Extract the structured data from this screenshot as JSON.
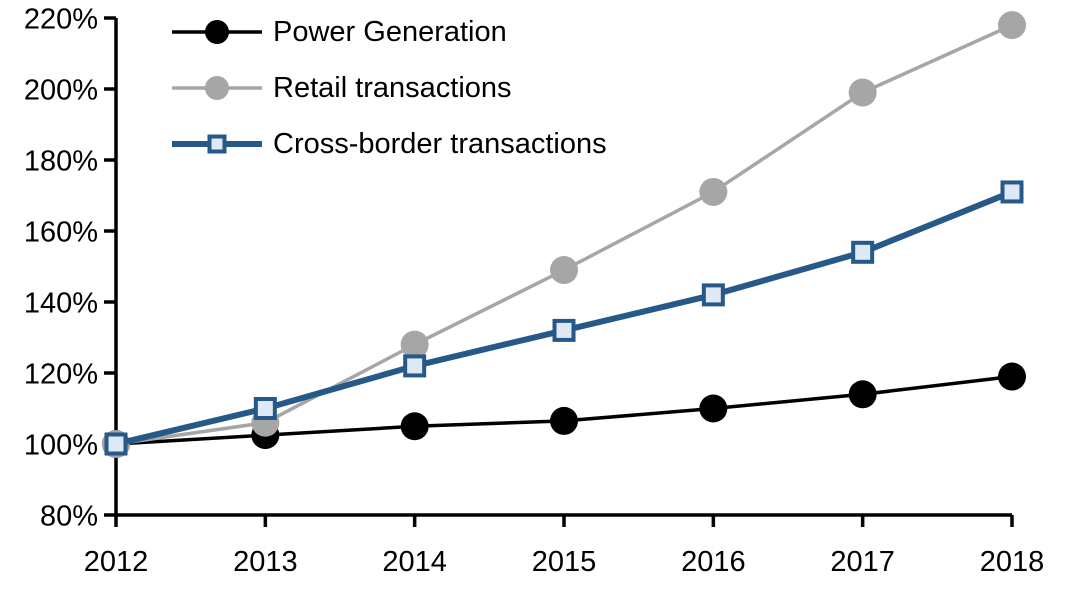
{
  "chart_data": {
    "type": "line",
    "title": "",
    "xlabel": "",
    "ylabel": "",
    "x": [
      2012,
      2013,
      2014,
      2015,
      2016,
      2017,
      2018
    ],
    "x_tick_labels": [
      "2012",
      "2013",
      "2014",
      "2015",
      "2016",
      "2017",
      "2018"
    ],
    "ylim": [
      80,
      220
    ],
    "y_tick_step": 20,
    "y_tick_labels": [
      "80%",
      "100%",
      "120%",
      "140%",
      "160%",
      "180%",
      "200%",
      "220%"
    ],
    "grid": false,
    "legend_position": "top-left-inside",
    "axis_color": "#000000",
    "text_color": "#000000",
    "background_color": "#FFFFFF",
    "series": [
      {
        "name": "Power Generation",
        "color": "#000000",
        "marker": "circle",
        "marker_fill": "#000000",
        "line_width": 3.5,
        "values": [
          100,
          102.5,
          105,
          106.5,
          110,
          114,
          119
        ]
      },
      {
        "name": "Retail transactions",
        "color": "#A6A6A6",
        "marker": "circle",
        "marker_fill": "#A6A6A6",
        "line_width": 3.5,
        "values": [
          100,
          106,
          128,
          149,
          171,
          199,
          218
        ]
      },
      {
        "name": "Cross-border transactions",
        "color": "#265888",
        "marker": "square",
        "marker_fill": "#DEE9F5",
        "line_width": 6,
        "values": [
          100,
          110,
          122,
          132,
          142,
          154,
          171
        ]
      }
    ]
  }
}
